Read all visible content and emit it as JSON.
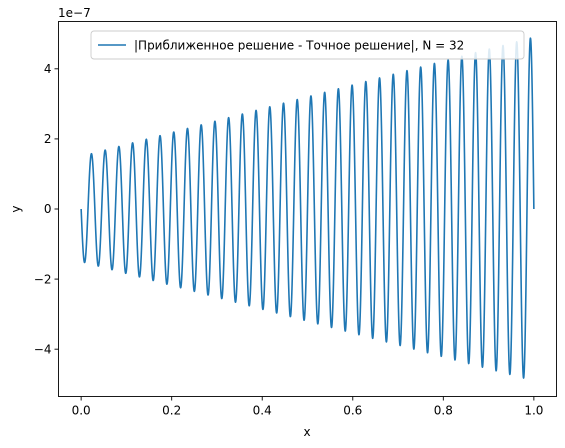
{
  "chart_data": {
    "type": "line",
    "xlabel": "x",
    "ylabel": "y",
    "scale_label": "1e−7",
    "xlim": [
      -0.05,
      1.05
    ],
    "ylim": [
      -5.35,
      5.35
    ],
    "xticks": [
      0.0,
      0.2,
      0.4,
      0.6,
      0.8,
      1.0
    ],
    "xtick_labels": [
      "0.0",
      "0.2",
      "0.4",
      "0.6",
      "0.8",
      "1.0"
    ],
    "yticks": [
      -4,
      -2,
      0,
      2,
      4
    ],
    "ytick_labels": [
      "−4",
      "−2",
      "0",
      "2",
      "4"
    ],
    "grid": false,
    "legend_position": "top-right",
    "series": [
      {
        "name": "|Приближенное решение - Точное решение|, N = 32",
        "color": "#1f77b4",
        "oscillations": 33,
        "amplitude_start": 1.5,
        "amplitude_end": 4.9,
        "y_start": 0,
        "y_end": 0,
        "x_range": [
          0,
          1
        ]
      }
    ]
  }
}
